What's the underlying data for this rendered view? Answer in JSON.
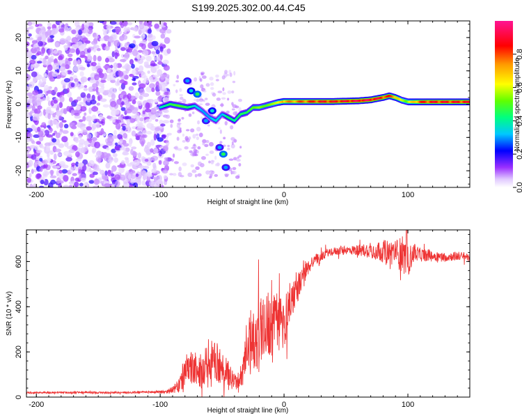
{
  "chart_data": [
    {
      "type": "heatmap",
      "title": "S199.2025.302.00.44.C45",
      "xlabel": "Height of straight line (km)",
      "ylabel": "Frequency (Hz)",
      "xlim": [
        -208,
        150
      ],
      "ylim": [
        -25,
        25
      ],
      "xticks": [
        -200,
        -100,
        0,
        100
      ],
      "xtick_labels": [
        "-200",
        "-100",
        "0",
        "100"
      ],
      "yticks": [
        -20,
        -10,
        0,
        10,
        20
      ],
      "ytick_labels": [
        "-20",
        "-10",
        "0",
        "10",
        "20"
      ],
      "colorbar": {
        "label": "Normalized spectral amplitude",
        "range": [
          0,
          1
        ],
        "ticks": [
          0.0,
          0.2,
          0.4,
          0.6,
          0.8
        ],
        "tick_labels": [
          "0.0",
          "0.2",
          "0.4",
          "0.6",
          "0.8"
        ],
        "colormap": [
          "#ffffff",
          "#c8a0ff",
          "#7a00ff",
          "#0000ff",
          "#00c8ff",
          "#00ff80",
          "#80ff00",
          "#ffff00",
          "#ff9900",
          "#ff0000",
          "#ff1493"
        ]
      },
      "noise_region": {
        "x_range": [
          -208,
          -93
        ],
        "amplitude": 0.15
      },
      "signal_trace": {
        "x": [
          -100,
          -92,
          -85,
          -78,
          -72,
          -66,
          -60,
          -55,
          -50,
          -45,
          -40,
          -35,
          -30,
          -25,
          -20,
          -15,
          -10,
          -5,
          0,
          10,
          20,
          30,
          40,
          50,
          60,
          70,
          80,
          85,
          90,
          95,
          100,
          110,
          120,
          130,
          140,
          150
        ],
        "freq": [
          -1,
          0,
          -0.5,
          -1,
          -0.5,
          -2,
          -4,
          -5,
          -3,
          -4,
          -5,
          -3,
          -2.5,
          -1,
          -1,
          -0.5,
          0,
          0.5,
          0.8,
          0.8,
          0.8,
          0.8,
          0.8,
          0.9,
          1.0,
          1.3,
          2.0,
          2.5,
          2.0,
          1.2,
          0.7,
          0.7,
          0.7,
          0.7,
          0.7,
          0.7
        ],
        "amplitude": [
          0.35,
          0.45,
          0.5,
          0.45,
          0.35,
          0.3,
          0.3,
          0.35,
          0.3,
          0.45,
          0.4,
          0.45,
          0.45,
          0.5,
          0.55,
          0.5,
          0.55,
          0.6,
          0.75,
          0.8,
          0.85,
          0.9,
          0.9,
          0.92,
          0.95,
          0.95,
          0.9,
          0.85,
          0.8,
          0.6,
          0.6,
          0.85,
          0.9,
          0.9,
          0.9,
          0.9
        ]
      },
      "blobs": [
        {
          "x": -78,
          "freq": 7,
          "amplitude": 0.3
        },
        {
          "x": -75,
          "freq": 4,
          "amplitude": 0.35
        },
        {
          "x": -70,
          "freq": 3,
          "amplitude": 0.45
        },
        {
          "x": -63,
          "freq": -5,
          "amplitude": 0.3
        },
        {
          "x": -58,
          "freq": -2,
          "amplitude": 0.35
        },
        {
          "x": -52,
          "freq": -13,
          "amplitude": 0.3
        },
        {
          "x": -49,
          "freq": -15,
          "amplitude": 0.45
        },
        {
          "x": -47,
          "freq": -19,
          "amplitude": 0.3
        }
      ]
    },
    {
      "type": "line",
      "xlabel": "Height of straight line (km)",
      "ylabel": "SNR (10 * v/v)",
      "xlim": [
        -208,
        150
      ],
      "ylim": [
        0,
        740
      ],
      "xticks": [
        -200,
        -100,
        0,
        100
      ],
      "xtick_labels": [
        "-200",
        "-100",
        "0",
        "100"
      ],
      "yticks": [
        0,
        200,
        400,
        600
      ],
      "ytick_labels": [
        "0",
        "200",
        "400",
        "600"
      ],
      "line_color": "#ee3333",
      "series": [
        {
          "name": "SNR",
          "x": [
            -208,
            -190,
            -170,
            -150,
            -130,
            -110,
            -100,
            -95,
            -90,
            -85,
            -80,
            -75,
            -70,
            -65,
            -60,
            -55,
            -50,
            -45,
            -42,
            -38,
            -35,
            -30,
            -25,
            -20,
            -15,
            -10,
            -5,
            0,
            5,
            10,
            15,
            20,
            25,
            30,
            35,
            40,
            50,
            60,
            70,
            80,
            90,
            95,
            100,
            105,
            110,
            120,
            130,
            140,
            150
          ],
          "y": [
            20,
            20,
            20,
            20,
            20,
            22,
            22,
            25,
            30,
            50,
            100,
            130,
            110,
            120,
            140,
            160,
            120,
            100,
            80,
            60,
            90,
            220,
            260,
            300,
            340,
            300,
            330,
            330,
            420,
            480,
            520,
            580,
            610,
            620,
            640,
            645,
            650,
            650,
            650,
            645,
            640,
            630,
            600,
            640,
            630,
            625,
            620,
            625,
            620
          ],
          "amplitude": [
            4,
            4,
            4,
            4,
            4,
            5,
            6,
            10,
            15,
            30,
            60,
            80,
            60,
            90,
            110,
            90,
            80,
            60,
            40,
            30,
            60,
            120,
            170,
            170,
            150,
            160,
            140,
            120,
            90,
            70,
            50,
            35,
            25,
            20,
            18,
            18,
            18,
            25,
            35,
            50,
            60,
            80,
            70,
            40,
            30,
            25,
            20,
            20,
            20
          ]
        }
      ]
    }
  ]
}
